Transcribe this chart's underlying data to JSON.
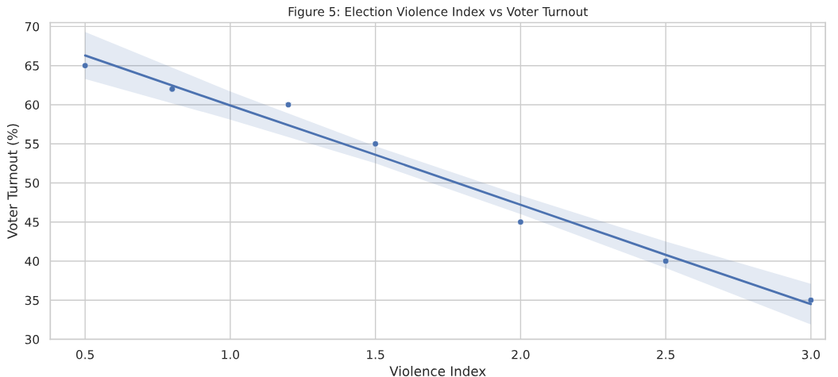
{
  "chart_data": {
    "type": "scatter",
    "title": "Figure 5: Election Violence Index vs Voter Turnout",
    "xlabel": "Violence Index",
    "ylabel": "Voter Turnout (%)",
    "series": [
      {
        "color": "#4c72b0",
        "marker": "circle",
        "x": [
          0.5,
          0.8,
          1.2,
          1.5,
          2.0,
          2.5,
          3.0
        ],
        "values": [
          65,
          62,
          60,
          55,
          45,
          40,
          35
        ]
      },
      {
        "type": "line",
        "color": "#4c72b0",
        "x": [
          0.5,
          1.0,
          1.5,
          2.0,
          2.5,
          3.0
        ],
        "values": [
          66.3,
          59.9,
          53.6,
          47.2,
          40.8,
          34.5
        ],
        "lower": [
          63.3,
          58.1,
          52.5,
          46.0,
          39.1,
          31.9
        ],
        "upper": [
          69.3,
          61.7,
          54.7,
          48.4,
          42.5,
          37.1
        ]
      }
    ],
    "xlim": [
      0.38,
      3.05
    ],
    "ylim": [
      30,
      70.5
    ],
    "xticks": [
      0.5,
      {
        "value": 1,
        "label": "1.0"
      },
      1.5,
      {
        "value": 2,
        "label": "2.0"
      },
      2.5,
      {
        "value": 3,
        "label": "3.0"
      }
    ],
    "yticks": [
      30,
      35,
      40,
      45,
      50,
      55,
      60,
      65,
      70
    ],
    "grid": true,
    "legend": false
  }
}
